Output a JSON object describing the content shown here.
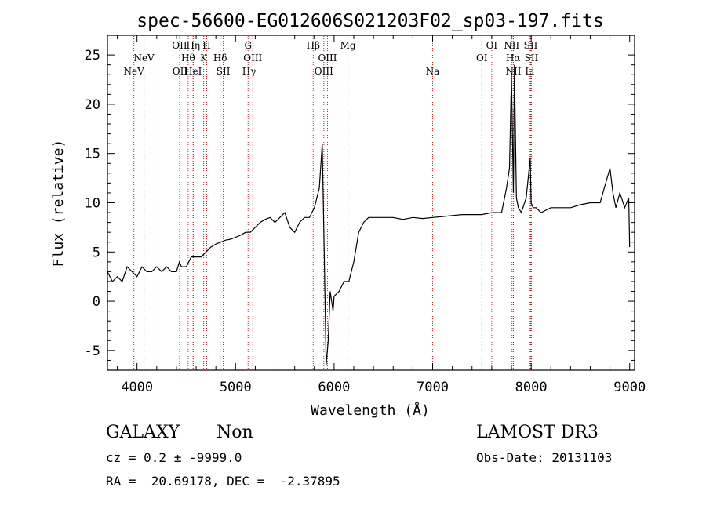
{
  "chart_data": {
    "type": "line",
    "title": "spec-56600-EG012606S021203F02_sp03-197.fits",
    "xlabel": "Wavelength (Å)",
    "ylabel": "Flux (relative)",
    "xlim": [
      3700,
      9050
    ],
    "ylim": [
      -7.0,
      27.0
    ],
    "xticks": [
      4000,
      5000,
      6000,
      7000,
      8000,
      9000
    ],
    "yticks": [
      -5,
      0,
      5,
      10,
      15,
      20,
      25
    ],
    "grid": false,
    "line_color": "#000000",
    "marker_color": "#cc2222",
    "series": [
      {
        "x": [
          3700,
          3750,
          3800,
          3850,
          3900,
          3950,
          4000,
          4050,
          4100,
          4150,
          4200,
          4250,
          4300,
          4350,
          4400,
          4430,
          4450,
          4500,
          4550,
          4600,
          4650,
          4700,
          4750,
          4800,
          4850,
          4900,
          4950,
          5000,
          5050,
          5100,
          5150,
          5200,
          5250,
          5300,
          5350,
          5400,
          5450,
          5500,
          5550,
          5600,
          5650,
          5700,
          5750,
          5800,
          5850,
          5880,
          5900,
          5920,
          5940,
          5960,
          5990,
          6000,
          6050,
          6100,
          6150,
          6200,
          6250,
          6300,
          6350,
          6400,
          6500,
          6600,
          6700,
          6800,
          6900,
          7000,
          7100,
          7200,
          7300,
          7400,
          7500,
          7600,
          7700,
          7750,
          7780,
          7800,
          7820,
          7830,
          7850,
          7870,
          7900,
          7950,
          7990,
          8000,
          8020,
          8050,
          8100,
          8200,
          8300,
          8400,
          8500,
          8600,
          8700,
          8800,
          8830,
          8860,
          8900,
          8950,
          8990,
          9000
        ],
        "values": [
          3.0,
          2.0,
          2.5,
          2.0,
          3.5,
          3.0,
          2.5,
          3.5,
          3.0,
          3.0,
          3.5,
          3.0,
          3.5,
          3.0,
          3.0,
          4.0,
          3.5,
          3.5,
          4.5,
          4.5,
          4.5,
          5.0,
          5.5,
          5.8,
          6.0,
          6.2,
          6.3,
          6.5,
          6.7,
          7.0,
          7.0,
          7.5,
          8.0,
          8.3,
          8.5,
          8.0,
          8.5,
          9.0,
          7.5,
          7.0,
          8.0,
          8.5,
          8.5,
          9.5,
          11.5,
          16.0,
          5.0,
          -6.5,
          -4.0,
          1.0,
          -1.0,
          0.5,
          1.0,
          2.0,
          2.0,
          4.0,
          7.0,
          8.0,
          8.5,
          8.5,
          8.5,
          8.5,
          8.3,
          8.5,
          8.4,
          8.5,
          8.6,
          8.7,
          8.8,
          8.8,
          8.8,
          9.0,
          9.0,
          11.5,
          13.5,
          23.0,
          11.0,
          24.0,
          10.5,
          9.5,
          9.0,
          10.5,
          14.5,
          10.0,
          9.5,
          9.5,
          9.0,
          9.5,
          9.5,
          9.5,
          9.8,
          10.0,
          10.0,
          13.5,
          11.0,
          9.5,
          11.0,
          9.5,
          10.5,
          5.5
        ]
      }
    ],
    "line_markers": [
      {
        "wavelength": 3968,
        "label": "NeV",
        "row": 3
      },
      {
        "wavelength": 4071,
        "label": "NeV",
        "row": 2
      },
      {
        "wavelength": 4432,
        "label": "OII",
        "row": 1
      },
      {
        "wavelength": 4436,
        "label": "OII",
        "row": 3
      },
      {
        "wavelength": 4519,
        "label": "Hθ",
        "row": 2
      },
      {
        "wavelength": 4570,
        "label": "Hη",
        "row": 1
      },
      {
        "wavelength": 4570,
        "label": "HeI",
        "row": 3
      },
      {
        "wavelength": 4676,
        "label": "K",
        "row": 2
      },
      {
        "wavelength": 4707,
        "label": "H",
        "row": 1
      },
      {
        "wavelength": 4844,
        "label": "Hδ",
        "row": 2
      },
      {
        "wavelength": 4875,
        "label": "SII",
        "row": 3
      },
      {
        "wavelength": 5127,
        "label": "G",
        "row": 1
      },
      {
        "wavelength": 5175,
        "label": "OIII",
        "row": 2
      },
      {
        "wavelength": 5138,
        "label": "Hγ",
        "row": 3
      },
      {
        "wavelength": 5788,
        "label": "Hβ",
        "row": 1
      },
      {
        "wavelength": 5933,
        "label": "OIII",
        "row": 2
      },
      {
        "wavelength": 5896,
        "label": "OIII",
        "row": 3
      },
      {
        "wavelength": 6141,
        "label": "Mg",
        "row": 1
      },
      {
        "wavelength": 7000,
        "label": "Na",
        "row": 3
      },
      {
        "wavelength": 7600,
        "label": "OI",
        "row": 1
      },
      {
        "wavelength": 7500,
        "label": "OI",
        "row": 2
      },
      {
        "wavelength": 7802,
        "label": "NII",
        "row": 1
      },
      {
        "wavelength": 7818,
        "label": "Hα",
        "row": 2
      },
      {
        "wavelength": 7820,
        "label": "NII",
        "row": 3
      },
      {
        "wavelength": 7995,
        "label": "SII",
        "row": 1
      },
      {
        "wavelength": 8003,
        "label": "SII",
        "row": 2
      },
      {
        "wavelength": 7985,
        "label": "Li",
        "row": 3
      }
    ]
  },
  "info": {
    "object_class": "GALAXY",
    "object_subclass": "Non",
    "survey": "LAMOST DR3",
    "cz_line": "cz = 0.2 ± -9999.0",
    "obs_date_line": "Obs-Date: 20131103",
    "coords_line": "RA =  20.69178, DEC =  -2.37895"
  }
}
